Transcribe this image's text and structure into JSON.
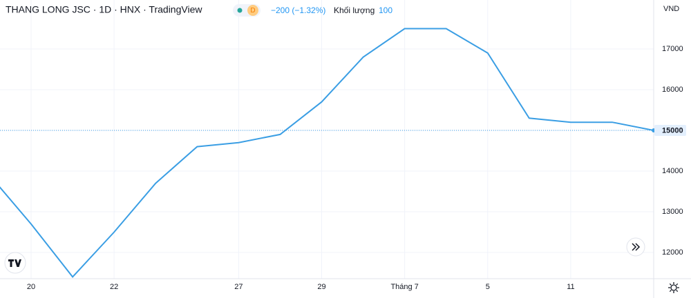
{
  "chart_data": {
    "type": "line",
    "title": "THANG LONG JSC · 1D · HNX · TradingView",
    "badge": "D",
    "change": "−200 (−1.32%)",
    "volume_label": "Khối lượng",
    "volume": 100,
    "y_axis_label": "VND",
    "categories": [
      null,
      "20",
      null,
      "22",
      null,
      null,
      "27",
      null,
      "29",
      null,
      "Tháng 7",
      null,
      "5",
      null,
      "11",
      null,
      null
    ],
    "values": [
      13900,
      12700,
      11400,
      12500,
      13700,
      14600,
      14700,
      14900,
      15700,
      16800,
      17500,
      17500,
      16900,
      15300,
      15200,
      15200,
      15000
    ],
    "color": "#3a9ee4",
    "ylim": [
      11356,
      18203
    ],
    "yticks": [
      12000,
      13000,
      14000,
      15000,
      16000,
      17000
    ],
    "grid": true
  }
}
